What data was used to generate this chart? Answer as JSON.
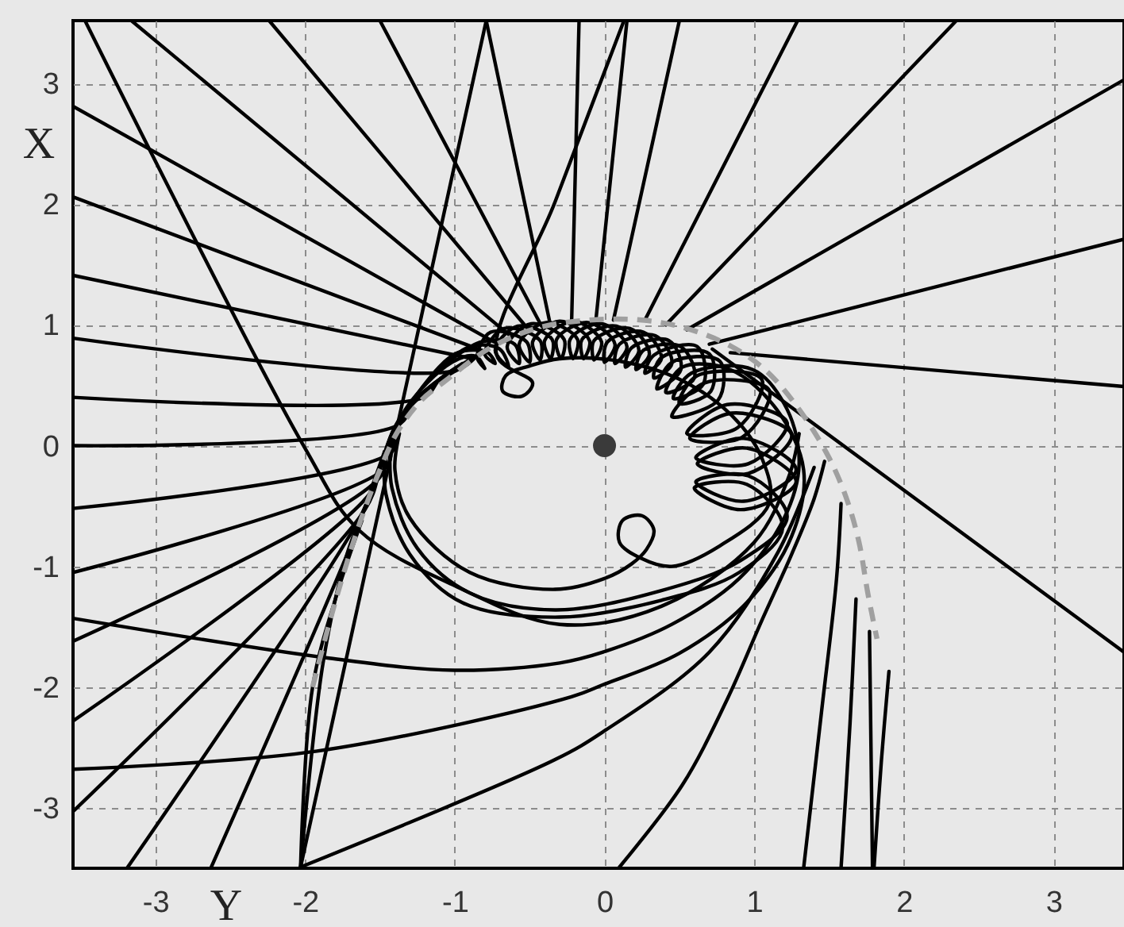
{
  "chart_data": {
    "type": "line",
    "xlabel": "Y",
    "ylabel": "X",
    "xlim": [
      -3.55,
      3.47
    ],
    "ylim": [
      -3.5,
      3.52
    ],
    "xticks": [
      -3,
      -2,
      -1,
      0,
      1,
      2,
      3
    ],
    "yticks": [
      -3,
      -2,
      -1,
      0,
      1,
      2,
      3
    ],
    "grid": true,
    "series": [
      {
        "color": "#000000",
        "x": [
          -1.44,
          -1.33,
          -1.02,
          -0.86,
          -0.8,
          -0.85,
          -0.76,
          -0.52,
          -0.5,
          -0.57,
          -0.39,
          -0.18,
          -0.21,
          -0.23,
          -0.02,
          0.15,
          0.07,
          0.1,
          0.34,
          0.45,
          0.33,
          0.38,
          0.7,
          0.71,
          0.5,
          0.62,
          1.05,
          0.89,
          0.55,
          0.82,
          1.22,
          0.96,
          0.61,
          0.93,
          1.28,
          0.93,
          0.61,
          0.96,
          1.22,
          0.91,
          0.38,
          -0.33,
          -0.9,
          -1.25,
          -1.42,
          -1.43
        ],
        "values": [
          -0.05,
          0.3,
          0.69,
          0.74,
          0.64,
          0.73,
          0.94,
          0.86,
          0.69,
          0.84,
          1.02,
          0.88,
          0.72,
          0.88,
          1.01,
          0.82,
          0.68,
          0.84,
          0.91,
          0.68,
          0.56,
          0.73,
          0.76,
          0.45,
          0.35,
          0.58,
          0.55,
          0.15,
          0.1,
          0.34,
          0.19,
          -0.15,
          -0.1,
          0.06,
          -0.2,
          -0.46,
          -0.3,
          -0.25,
          -0.59,
          -0.95,
          -1.2,
          -1.36,
          -1.22,
          -0.85,
          -0.35,
          0
        ]
      },
      {
        "color": "#000000",
        "x": [
          -1.4,
          -1.22,
          -0.98,
          -0.78,
          -0.73,
          -0.8,
          -0.67,
          -0.43,
          -0.43,
          -0.48,
          -0.3,
          -0.1,
          -0.14,
          -0.15,
          0.08,
          0.23,
          0.14,
          0.18,
          0.43,
          0.51,
          0.35,
          0.45,
          0.77,
          0.76,
          0.45,
          0.67,
          1.1,
          0.92,
          0.57,
          0.85,
          1.25,
          0.96,
          0.62,
          0.95,
          1.28,
          0.91,
          0.6,
          0.95,
          1.19,
          0.9,
          0.38,
          -0.3,
          -0.95,
          -1.3,
          -1.46,
          -1.47
        ],
        "values": [
          0.1,
          0.48,
          0.77,
          0.77,
          0.68,
          0.76,
          0.97,
          0.87,
          0.71,
          0.86,
          1.03,
          0.87,
          0.72,
          0.88,
          0.99,
          0.79,
          0.65,
          0.81,
          0.87,
          0.63,
          0.47,
          0.69,
          0.7,
          0.38,
          0.24,
          0.52,
          0.46,
          0.07,
          0.06,
          0.27,
          0.09,
          -0.23,
          -0.15,
          -0.02,
          -0.3,
          -0.53,
          -0.35,
          -0.32,
          -0.68,
          -1.05,
          -1.28,
          -1.42,
          -1.3,
          -0.9,
          -0.4,
          -0.05
        ]
      },
      {
        "color": "#000000",
        "x": [
          -1.15,
          -0.9,
          -0.7,
          -0.64,
          -0.73,
          -0.58,
          -0.35,
          -0.36,
          -0.4,
          -0.2,
          -0.02,
          -0.07,
          -0.07,
          0.17,
          0.3,
          0.21,
          0.26,
          0.51,
          0.6,
          0.41,
          0.52,
          0.84,
          1.15,
          1.33,
          1.25,
          0.95,
          0.5,
          -0.01,
          -0.22,
          -1.92,
          -3.55
        ],
        "values": [
          0.58,
          0.82,
          0.8,
          0.65,
          0.79,
          0.99,
          0.88,
          0.72,
          0.87,
          1.03,
          0.86,
          0.71,
          0.87,
          0.97,
          0.76,
          0.63,
          0.79,
          0.82,
          0.56,
          0.44,
          0.65,
          0.63,
          0.3,
          -0.2,
          -0.75,
          -1.3,
          -1.72,
          -1.98,
          -2.08,
          -2.53,
          -2.68
        ]
      },
      {
        "color": "#000000",
        "x": [
          -1.08,
          -0.82,
          -0.6,
          -0.57,
          -0.65,
          -0.49,
          -0.27,
          -0.29,
          -0.32,
          -0.11,
          0.07,
          0,
          0.02,
          0.26,
          0.38,
          0.27,
          0.33,
          0.62,
          0.66,
          0.46,
          0.58,
          0.99,
          1.22,
          1.3,
          1.2,
          0.9,
          0.45,
          -0.01,
          -0.3,
          -1,
          -1.84,
          -3.55
        ],
        "values": [
          0.66,
          0.86,
          0.84,
          0.68,
          0.82,
          1.01,
          0.88,
          0.72,
          0.88,
          1.02,
          0.84,
          0.69,
          0.86,
          0.94,
          0.72,
          0.6,
          0.75,
          0.82,
          0.51,
          0.39,
          0.6,
          0.63,
          0.3,
          -0.15,
          -0.6,
          -1.1,
          -1.48,
          -1.71,
          -1.8,
          -1.86,
          -1.76,
          -1.43
        ]
      },
      {
        "color": "#000000",
        "x": [
          0.13,
          -0.33,
          -0.72,
          -0.48,
          -0.55,
          -0.68,
          -0.66,
          -0.5,
          -0.3,
          0.1,
          0.5,
          0.85,
          1.05,
          1.1,
          0.77,
          0.45,
          0.24,
          0.1,
          0.12,
          0.25,
          0.33,
          0.28,
          0.18,
          0,
          -0.33,
          -0.9,
          -1.3,
          -1.4,
          -1.37
        ],
        "values": [
          3.52,
          2.02,
          0.75,
          0.52,
          0.41,
          0.45,
          0.58,
          0.66,
          0.72,
          0.7,
          0.55,
          0.25,
          -0.1,
          -0.48,
          -0.83,
          -1,
          -0.93,
          -0.8,
          -0.62,
          -0.58,
          -0.7,
          -0.86,
          -0.98,
          -1.1,
          -1.19,
          -1.05,
          -0.6,
          -0.2,
          0.1
        ]
      },
      {
        "color": "#000000",
        "x": [
          -3.47,
          -2.01,
          -1.64,
          -1,
          -0.3,
          0.38,
          1,
          1.23,
          1.3
        ],
        "values": [
          3.52,
          0,
          -0.7,
          -1.16,
          -1.48,
          -1.33,
          -0.8,
          -0.26,
          0.1
        ]
      },
      {
        "color": "#000000",
        "x": [
          -2.03,
          -0.79
        ],
        "values": [
          -3.49,
          3.52
        ]
      },
      {
        "color": "#000000",
        "x": [
          -0.79,
          -0.36
        ],
        "values": [
          3.52,
          0.99
        ]
      },
      {
        "color": "#000000",
        "x": [
          -2.03,
          -1.88,
          -1.72,
          -1.57,
          -1.48
        ],
        "values": [
          -3.49,
          -1.8,
          -0.9,
          -0.42,
          -0.1
        ]
      },
      {
        "color": "#000000",
        "x": [
          -2.03,
          -1.95,
          -1.78,
          -1.62
        ],
        "values": [
          -3.49,
          -2,
          -1.2,
          -0.62
        ]
      },
      {
        "color": "#000000",
        "x": [
          -2.03,
          -0.33,
          -0.01,
          0.7,
          1.16,
          1.4
        ],
        "values": [
          -3.49,
          -2.6,
          -2.37,
          -1.71,
          -0.88,
          -0.18
        ]
      },
      {
        "color": "#000000",
        "x": [
          0.1,
          0.52,
          0.82,
          1.05,
          1.25,
          1.4,
          1.47
        ],
        "values": [
          -3.49,
          -2.81,
          -2.1,
          -1.45,
          -0.9,
          -0.44,
          -0.13
        ]
      },
      {
        "color": "#000000",
        "x": [
          1.33,
          1.45,
          1.55,
          1.58
        ],
        "values": [
          -3.5,
          -2.2,
          -1.1,
          -0.48
        ]
      },
      {
        "color": "#000000",
        "x": [
          1.58,
          1.64,
          1.68
        ],
        "values": [
          -3.5,
          -2.3,
          -1.27
        ]
      },
      {
        "color": "#000000",
        "x": [
          1.79,
          1.78,
          1.77
        ],
        "values": [
          -3.5,
          -2.5,
          -1.54
        ]
      },
      {
        "color": "#000000",
        "x": [
          1.8,
          1.85,
          1.9
        ],
        "values": [
          -3.5,
          -2.6,
          -1.87
        ]
      },
      {
        "color": "#000000",
        "x": [
          -3.55,
          -0.74
        ],
        "values": [
          2.81,
          0.86
        ]
      },
      {
        "color": "#000000",
        "x": [
          -3.55,
          -0.8
        ],
        "values": [
          2.06,
          0.78
        ]
      },
      {
        "color": "#000000",
        "x": [
          -3.55,
          -0.88
        ],
        "values": [
          1.41,
          0.72
        ]
      },
      {
        "color": "#000000",
        "x": [
          -3.55,
          -1,
          -0.85
        ],
        "values": [
          0.89,
          0.62,
          0.75
        ]
      },
      {
        "color": "#000000",
        "x": [
          -3.55,
          -1.21,
          -1.1,
          -0.95
        ],
        "values": [
          0.4,
          0.4,
          0.55,
          0.68
        ]
      },
      {
        "color": "#000000",
        "x": [
          -3.55,
          -1.38,
          -1.27,
          -1.1,
          -0.9
        ],
        "values": [
          0,
          0.17,
          0.37,
          0.55,
          0.7
        ]
      },
      {
        "color": "#000000",
        "x": [
          -3.55,
          -1.42,
          -1.38,
          -1.26,
          -1.08,
          -0.86
        ],
        "values": [
          -0.52,
          -0.05,
          0.17,
          0.38,
          0.57,
          0.74
        ]
      },
      {
        "color": "#000000",
        "x": [
          -3.55,
          -1.46,
          -1.42,
          -1.33,
          -1.18,
          -0.98
        ],
        "values": [
          -1.05,
          -0.18,
          0.05,
          0.27,
          0.47,
          0.63
        ]
      },
      {
        "color": "#000000",
        "x": [
          -3.55,
          -1.5,
          -1.45,
          -1.37,
          -1.23,
          -1.03
        ],
        "values": [
          -1.62,
          -0.26,
          0,
          0.22,
          0.42,
          0.6
        ]
      },
      {
        "color": "#000000",
        "x": [
          -3.55,
          -1.57,
          -1.48,
          -1.41,
          -1.3,
          -1.14
        ],
        "values": [
          -2.28,
          -0.4,
          -0.1,
          0.13,
          0.33,
          0.5
        ]
      },
      {
        "color": "#000000",
        "x": [
          -3.55,
          -1.6,
          -1.5,
          -1.43,
          -1.33,
          -1.17
        ],
        "values": [
          -3.03,
          -0.53,
          -0.2,
          0.06,
          0.28,
          0.47
        ]
      },
      {
        "color": "#000000",
        "x": [
          -3.19,
          -1.64,
          -1.52,
          -1.44,
          -1.34
        ],
        "values": [
          -3.5,
          -0.61,
          -0.25,
          0.02,
          0.25
        ]
      },
      {
        "color": "#000000",
        "x": [
          -2.63,
          -1.67,
          -1.55,
          -1.47
        ],
        "values": [
          -3.5,
          -0.75,
          -0.33,
          -0.05
        ]
      },
      {
        "color": "#000000",
        "x": [
          -3.16,
          -0.62
        ],
        "values": [
          3.52,
          0.9
        ]
      },
      {
        "color": "#000000",
        "x": [
          -2.24,
          -0.5
        ],
        "values": [
          3.52,
          0.95
        ]
      },
      {
        "color": "#000000",
        "x": [
          -1.5,
          -0.42
        ],
        "values": [
          3.52,
          0.99
        ]
      },
      {
        "color": "#000000",
        "x": [
          -0.17,
          -0.22
        ],
        "values": [
          3.52,
          1.01
        ]
      },
      {
        "color": "#000000",
        "x": [
          0.15,
          -0.06
        ],
        "values": [
          3.52,
          1.01
        ]
      },
      {
        "color": "#000000",
        "x": [
          0.5,
          0.06
        ],
        "values": [
          3.52,
          1.04
        ]
      },
      {
        "color": "#000000",
        "x": [
          1.29,
          0.27
        ],
        "values": [
          3.52,
          1.04
        ]
      },
      {
        "color": "#000000",
        "x": [
          2.35,
          0.41
        ],
        "values": [
          3.52,
          1
        ]
      },
      {
        "color": "#000000",
        "x": [
          3.47,
          0.55
        ],
        "values": [
          3.03,
          0.96
        ]
      },
      {
        "color": "#000000",
        "x": [
          3.47,
          0.7
        ],
        "values": [
          1.71,
          0.84
        ]
      },
      {
        "color": "#000000",
        "x": [
          3.47,
          0.84
        ],
        "values": [
          0.49,
          0.77
        ]
      },
      {
        "color": "#000000",
        "x": [
          0.72,
          3.47
        ],
        "values": [
          0.8,
          -1.71
        ]
      },
      {
        "color": "#a0a0a0",
        "line_style": "dashed",
        "x": [
          -1.95,
          -1.8,
          -1.64,
          -1.5,
          -1.38,
          -1.22,
          -1.07,
          -0.75,
          -0.43,
          -0.1,
          0.25,
          0.55,
          0.85,
          1.08,
          1.3,
          1.5,
          1.62,
          1.7,
          1.76,
          1.82
        ],
        "values": [
          -2,
          -1.3,
          -0.66,
          -0.2,
          0.12,
          0.38,
          0.53,
          0.82,
          0.98,
          1.04,
          1.04,
          0.97,
          0.82,
          0.62,
          0.3,
          -0.1,
          -0.45,
          -0.8,
          -1.23,
          -1.6
        ]
      },
      {
        "type": "scatter",
        "marker": "circle",
        "color": "#3a3a3a",
        "x": [
          0
        ],
        "values": [
          0
        ]
      }
    ]
  }
}
